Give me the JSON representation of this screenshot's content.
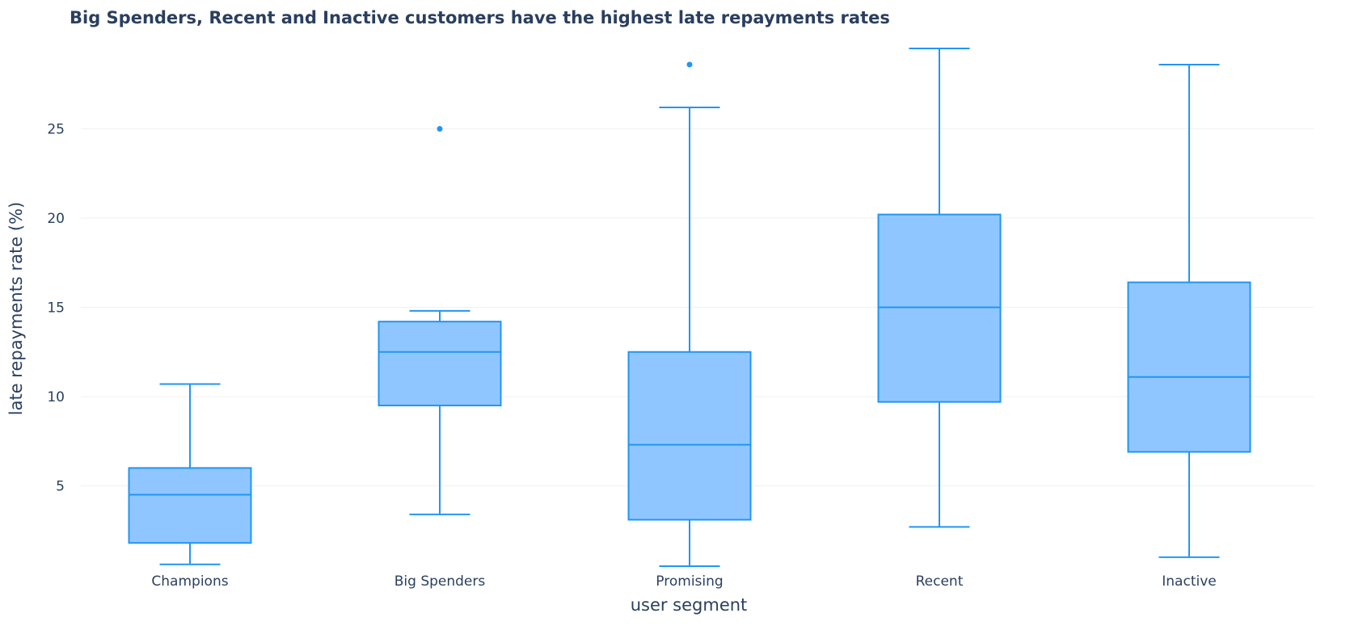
{
  "chart_data": {
    "type": "box",
    "title": "Big Spenders, Recent and Inactive customers have the highest late repayments rates",
    "xlabel": "user segment",
    "ylabel": "late repayments rate (%)",
    "categories": [
      "Champions",
      "Big Spenders",
      "Promising",
      "Recent",
      "Inactive"
    ],
    "boxes": [
      {
        "category": "Champions",
        "min": 0.6,
        "q1": 1.8,
        "median": 4.5,
        "q3": 6.0,
        "max": 10.7,
        "outliers": []
      },
      {
        "category": "Big Spenders",
        "min": 3.4,
        "q1": 9.5,
        "median": 12.5,
        "q3": 14.2,
        "max": 14.8,
        "outliers": [
          25.0
        ]
      },
      {
        "category": "Promising",
        "min": 0.5,
        "q1": 3.1,
        "median": 7.3,
        "q3": 12.5,
        "max": 26.2,
        "outliers": [
          28.6
        ]
      },
      {
        "category": "Recent",
        "min": 2.7,
        "q1": 9.7,
        "median": 15.0,
        "q3": 20.2,
        "max": 29.5,
        "outliers": []
      },
      {
        "category": "Inactive",
        "min": 1.0,
        "q1": 6.9,
        "median": 11.1,
        "q3": 16.4,
        "max": 28.6,
        "outliers": []
      }
    ],
    "yticks": [
      5,
      10,
      15,
      20,
      25
    ],
    "ylim": [
      0.2,
      29.5
    ],
    "grid": true,
    "legend": "none",
    "colors": {
      "line": "#2196f3",
      "fill": "#90c6ff",
      "grid": "#eef0f3",
      "text": "#2a3f5f",
      "title": "#2a3f5f"
    }
  }
}
